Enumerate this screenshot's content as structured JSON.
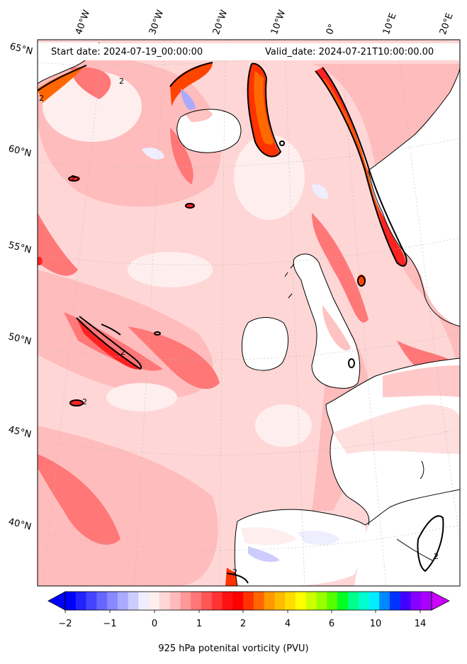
{
  "header": {
    "start_date": "Start date: 2024-07-19_00:00:00",
    "valid_date": "Valid_date: 2024-07-21T10:00:00.00"
  },
  "map": {
    "field": "925 hPa potenital vorticity (PVU)",
    "contour_label": "2",
    "lat_labels": [
      "65°N",
      "60°N",
      "55°N",
      "50°N",
      "45°N",
      "40°N"
    ],
    "lon_labels": [
      "40°W",
      "30°W",
      "20°W",
      "10°W",
      "0°",
      "10°E",
      "20°E"
    ],
    "colors": {
      "land": "#ffffff",
      "coastline": "#000000",
      "gridline": "#bbbbbb"
    }
  },
  "colorbar": {
    "tick_labels": [
      "−2",
      "−1",
      "0",
      "1",
      "2",
      "4",
      "6",
      "10",
      "14"
    ],
    "title": "925 hPa potenital vorticity (PVU)",
    "colors": [
      "#0000ff",
      "#2222ff",
      "#4444ff",
      "#6666ff",
      "#8888ff",
      "#aaaaff",
      "#ccccff",
      "#eeeeff",
      "#ffeeee",
      "#ffd6d6",
      "#ffbbbb",
      "#ff9999",
      "#ff7777",
      "#ff5555",
      "#ff3333",
      "#ff1111",
      "#ff0000",
      "#ff3300",
      "#ff6600",
      "#ff9900",
      "#ffbb00",
      "#ffdd00",
      "#ffff00",
      "#ccff00",
      "#99ff00",
      "#55ff00",
      "#00ff22",
      "#00ff88",
      "#00ffcc",
      "#00eeff",
      "#0088ff",
      "#0033ff",
      "#4400ff",
      "#8800ff",
      "#aa00ff"
    ],
    "extend_low_color": "#0000ff",
    "extend_high_color": "#cc00ff"
  }
}
